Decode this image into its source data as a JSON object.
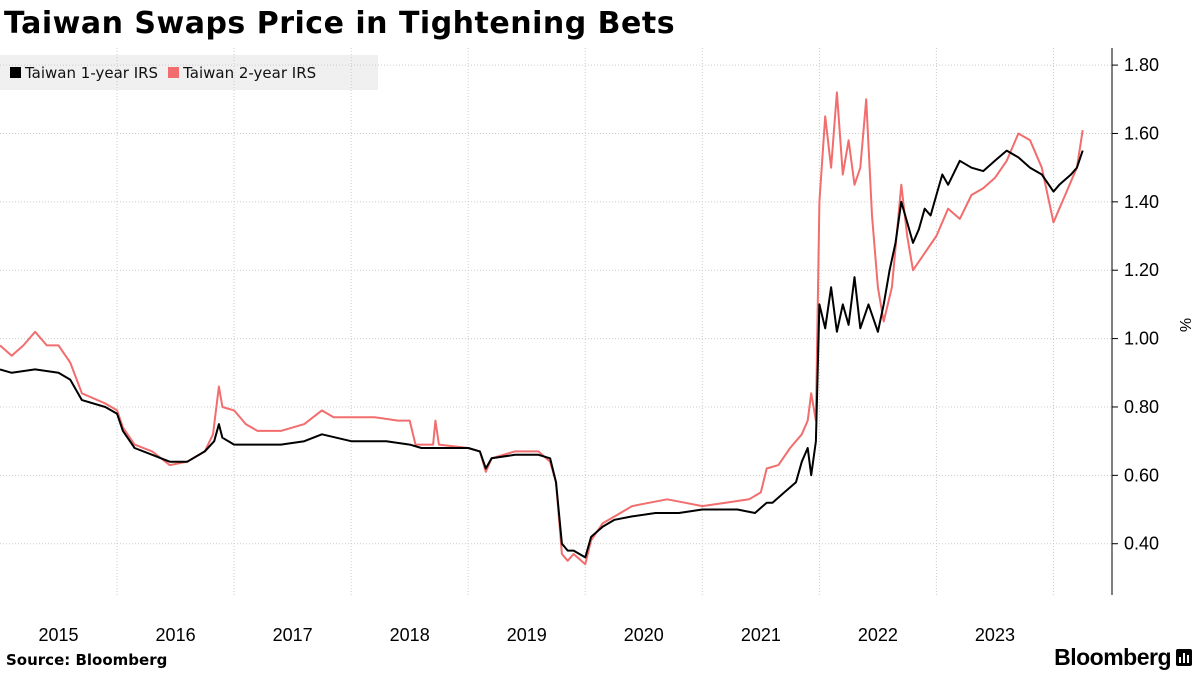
{
  "title": "Taiwan Swaps Price in Tightening Bets",
  "source": "Source: Bloomberg",
  "brand": "Bloomberg",
  "colors": {
    "series1": "#000000",
    "series2": "#f26d6d",
    "grid": "#cccccc",
    "legend_bg": "#f0f0f0"
  },
  "chart_data": {
    "type": "line",
    "title": "Taiwan Swaps Price in Tightening Bets",
    "ylabel": "%",
    "xlabel": "",
    "ylim": [
      0.25,
      1.85
    ],
    "yticks": [
      0.4,
      0.6,
      0.8,
      1.0,
      1.2,
      1.4,
      1.6,
      1.8
    ],
    "ytick_labels": [
      "0.40",
      "0.60",
      "0.80",
      "1.00",
      "1.20",
      "1.40",
      "1.60",
      "1.80"
    ],
    "xlim": [
      2015.0,
      2024.5
    ],
    "x_tick_labels": [
      "2015",
      "2016",
      "2017",
      "2018",
      "2019",
      "2020",
      "2021",
      "2022",
      "2023"
    ],
    "y_axis_position": "right",
    "legend": "top-left",
    "grid": "dotted",
    "series": [
      {
        "name": "Taiwan 1-year IRS",
        "color": "#000000",
        "points": [
          [
            2015.0,
            0.91
          ],
          [
            2015.1,
            0.9
          ],
          [
            2015.3,
            0.91
          ],
          [
            2015.5,
            0.9
          ],
          [
            2015.6,
            0.88
          ],
          [
            2015.7,
            0.82
          ],
          [
            2015.9,
            0.8
          ],
          [
            2016.0,
            0.78
          ],
          [
            2016.05,
            0.73
          ],
          [
            2016.15,
            0.68
          ],
          [
            2016.3,
            0.66
          ],
          [
            2016.45,
            0.64
          ],
          [
            2016.6,
            0.64
          ],
          [
            2016.75,
            0.67
          ],
          [
            2016.83,
            0.7
          ],
          [
            2016.87,
            0.75
          ],
          [
            2016.9,
            0.71
          ],
          [
            2017.0,
            0.69
          ],
          [
            2017.2,
            0.69
          ],
          [
            2017.4,
            0.69
          ],
          [
            2017.6,
            0.7
          ],
          [
            2017.75,
            0.72
          ],
          [
            2018.0,
            0.7
          ],
          [
            2018.3,
            0.7
          ],
          [
            2018.5,
            0.69
          ],
          [
            2018.6,
            0.68
          ],
          [
            2018.8,
            0.68
          ],
          [
            2019.0,
            0.68
          ],
          [
            2019.1,
            0.67
          ],
          [
            2019.15,
            0.62
          ],
          [
            2019.2,
            0.65
          ],
          [
            2019.4,
            0.66
          ],
          [
            2019.6,
            0.66
          ],
          [
            2019.7,
            0.65
          ],
          [
            2019.75,
            0.58
          ],
          [
            2019.8,
            0.4
          ],
          [
            2019.85,
            0.38
          ],
          [
            2019.9,
            0.38
          ],
          [
            2020.0,
            0.36
          ],
          [
            2020.05,
            0.42
          ],
          [
            2020.15,
            0.45
          ],
          [
            2020.25,
            0.47
          ],
          [
            2020.4,
            0.48
          ],
          [
            2020.6,
            0.49
          ],
          [
            2020.8,
            0.49
          ],
          [
            2021.0,
            0.5
          ],
          [
            2021.3,
            0.5
          ],
          [
            2021.45,
            0.49
          ],
          [
            2021.55,
            0.52
          ],
          [
            2021.6,
            0.52
          ],
          [
            2021.7,
            0.55
          ],
          [
            2021.8,
            0.58
          ],
          [
            2021.85,
            0.64
          ],
          [
            2021.9,
            0.68
          ],
          [
            2021.93,
            0.6
          ],
          [
            2021.97,
            0.7
          ],
          [
            2022.0,
            1.1
          ],
          [
            2022.05,
            1.03
          ],
          [
            2022.1,
            1.15
          ],
          [
            2022.15,
            1.02
          ],
          [
            2022.2,
            1.1
          ],
          [
            2022.25,
            1.04
          ],
          [
            2022.3,
            1.18
          ],
          [
            2022.35,
            1.03
          ],
          [
            2022.42,
            1.1
          ],
          [
            2022.5,
            1.02
          ],
          [
            2022.55,
            1.1
          ],
          [
            2022.6,
            1.2
          ],
          [
            2022.65,
            1.28
          ],
          [
            2022.7,
            1.4
          ],
          [
            2022.75,
            1.34
          ],
          [
            2022.8,
            1.28
          ],
          [
            2022.85,
            1.32
          ],
          [
            2022.9,
            1.38
          ],
          [
            2022.95,
            1.36
          ],
          [
            2023.0,
            1.42
          ],
          [
            2023.05,
            1.48
          ],
          [
            2023.1,
            1.45
          ],
          [
            2023.2,
            1.52
          ],
          [
            2023.3,
            1.5
          ],
          [
            2023.4,
            1.49
          ],
          [
            2023.5,
            1.52
          ],
          [
            2023.6,
            1.55
          ],
          [
            2023.7,
            1.53
          ],
          [
            2023.8,
            1.5
          ],
          [
            2023.9,
            1.48
          ],
          [
            2024.0,
            1.43
          ],
          [
            2024.05,
            1.45
          ],
          [
            2024.15,
            1.48
          ],
          [
            2024.2,
            1.5
          ],
          [
            2024.25,
            1.55
          ]
        ]
      },
      {
        "name": "Taiwan 2-year IRS",
        "color": "#f26d6d",
        "points": [
          [
            2015.0,
            0.98
          ],
          [
            2015.1,
            0.95
          ],
          [
            2015.2,
            0.98
          ],
          [
            2015.3,
            1.02
          ],
          [
            2015.4,
            0.98
          ],
          [
            2015.5,
            0.98
          ],
          [
            2015.6,
            0.93
          ],
          [
            2015.7,
            0.84
          ],
          [
            2015.9,
            0.81
          ],
          [
            2016.0,
            0.79
          ],
          [
            2016.05,
            0.74
          ],
          [
            2016.15,
            0.69
          ],
          [
            2016.3,
            0.67
          ],
          [
            2016.45,
            0.63
          ],
          [
            2016.6,
            0.64
          ],
          [
            2016.75,
            0.67
          ],
          [
            2016.82,
            0.72
          ],
          [
            2016.87,
            0.86
          ],
          [
            2016.9,
            0.8
          ],
          [
            2017.0,
            0.79
          ],
          [
            2017.1,
            0.75
          ],
          [
            2017.2,
            0.73
          ],
          [
            2017.4,
            0.73
          ],
          [
            2017.6,
            0.75
          ],
          [
            2017.75,
            0.79
          ],
          [
            2017.85,
            0.77
          ],
          [
            2018.0,
            0.77
          ],
          [
            2018.2,
            0.77
          ],
          [
            2018.4,
            0.76
          ],
          [
            2018.5,
            0.76
          ],
          [
            2018.55,
            0.69
          ],
          [
            2018.7,
            0.69
          ],
          [
            2018.72,
            0.76
          ],
          [
            2018.75,
            0.69
          ],
          [
            2019.0,
            0.68
          ],
          [
            2019.1,
            0.67
          ],
          [
            2019.15,
            0.61
          ],
          [
            2019.2,
            0.65
          ],
          [
            2019.4,
            0.67
          ],
          [
            2019.6,
            0.67
          ],
          [
            2019.7,
            0.64
          ],
          [
            2019.75,
            0.58
          ],
          [
            2019.8,
            0.37
          ],
          [
            2019.85,
            0.35
          ],
          [
            2019.9,
            0.37
          ],
          [
            2020.0,
            0.34
          ],
          [
            2020.05,
            0.41
          ],
          [
            2020.15,
            0.46
          ],
          [
            2020.3,
            0.49
          ],
          [
            2020.4,
            0.51
          ],
          [
            2020.55,
            0.52
          ],
          [
            2020.7,
            0.53
          ],
          [
            2020.85,
            0.52
          ],
          [
            2021.0,
            0.51
          ],
          [
            2021.2,
            0.52
          ],
          [
            2021.4,
            0.53
          ],
          [
            2021.5,
            0.55
          ],
          [
            2021.55,
            0.62
          ],
          [
            2021.65,
            0.63
          ],
          [
            2021.75,
            0.68
          ],
          [
            2021.85,
            0.72
          ],
          [
            2021.9,
            0.76
          ],
          [
            2021.93,
            0.84
          ],
          [
            2021.97,
            0.76
          ],
          [
            2022.0,
            1.4
          ],
          [
            2022.05,
            1.65
          ],
          [
            2022.1,
            1.5
          ],
          [
            2022.15,
            1.72
          ],
          [
            2022.2,
            1.48
          ],
          [
            2022.25,
            1.58
          ],
          [
            2022.3,
            1.45
          ],
          [
            2022.35,
            1.5
          ],
          [
            2022.4,
            1.7
          ],
          [
            2022.45,
            1.36
          ],
          [
            2022.5,
            1.15
          ],
          [
            2022.55,
            1.05
          ],
          [
            2022.62,
            1.15
          ],
          [
            2022.7,
            1.45
          ],
          [
            2022.75,
            1.3
          ],
          [
            2022.8,
            1.2
          ],
          [
            2022.9,
            1.25
          ],
          [
            2023.0,
            1.3
          ],
          [
            2023.1,
            1.38
          ],
          [
            2023.2,
            1.35
          ],
          [
            2023.3,
            1.42
          ],
          [
            2023.4,
            1.44
          ],
          [
            2023.5,
            1.47
          ],
          [
            2023.6,
            1.52
          ],
          [
            2023.7,
            1.6
          ],
          [
            2023.8,
            1.58
          ],
          [
            2023.9,
            1.5
          ],
          [
            2024.0,
            1.34
          ],
          [
            2024.05,
            1.38
          ],
          [
            2024.1,
            1.42
          ],
          [
            2024.15,
            1.46
          ],
          [
            2024.2,
            1.5
          ],
          [
            2024.25,
            1.61
          ]
        ]
      }
    ]
  }
}
